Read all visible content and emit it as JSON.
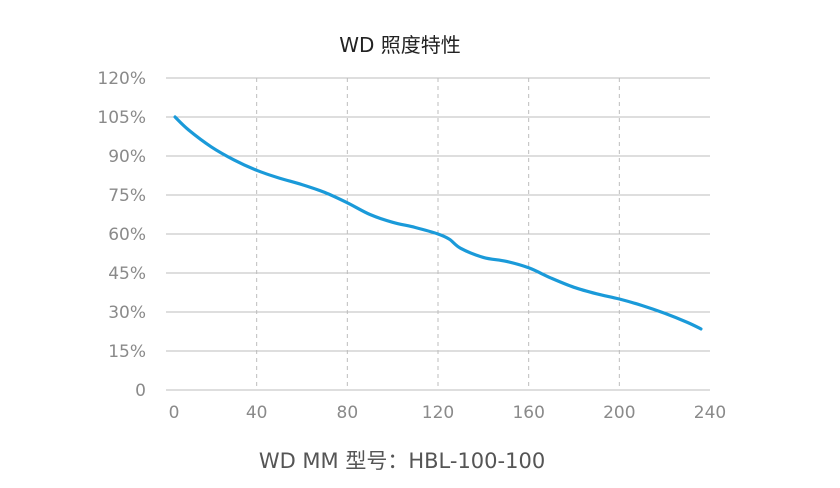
{
  "chart_data": {
    "type": "line",
    "title": "WD 照度特性",
    "caption": "WD MM 型号：HBL-100-100",
    "xlabel": "",
    "ylabel": "",
    "xlim": [
      0,
      240
    ],
    "ylim": [
      0,
      120
    ],
    "x_ticks": [
      0,
      40,
      80,
      120,
      160,
      200,
      240
    ],
    "x_tick_labels": [
      "0",
      "40",
      "80",
      "120",
      "160",
      "200",
      "240"
    ],
    "y_ticks": [
      0,
      15,
      30,
      45,
      60,
      75,
      90,
      105,
      120
    ],
    "y_tick_labels": [
      "0",
      "15%",
      "30%",
      "45%",
      "60%",
      "75%",
      "90%",
      "105%",
      "120%"
    ],
    "grid": {
      "horizontal": "solid",
      "vertical": "dashed"
    },
    "series": [
      {
        "color": "#1a9ad9",
        "x": [
          4,
          10,
          20,
          30,
          40,
          50,
          60,
          70,
          80,
          90,
          100,
          110,
          120,
          125,
          130,
          140,
          150,
          160,
          170,
          180,
          190,
          200,
          210,
          220,
          230,
          236
        ],
        "y": [
          105,
          100,
          93.5,
          88.5,
          84.5,
          81.5,
          79,
          76,
          72,
          67.5,
          64.5,
          62.5,
          60,
          58,
          54.5,
          51,
          49.5,
          47,
          43,
          39.5,
          37,
          35,
          32.5,
          29.5,
          26,
          23.5
        ]
      }
    ],
    "colors": {
      "line": "#1a9ad9",
      "grid": "#bdbdbd",
      "tick_text": "#8a8a8a",
      "title_text": "#222222",
      "caption_text": "#555555"
    }
  }
}
